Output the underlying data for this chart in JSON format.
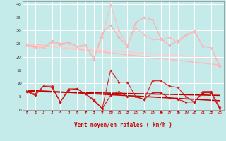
{
  "xlabel": "Vent moyen/en rafales ( km/h )",
  "xlim": [
    -0.5,
    23.5
  ],
  "ylim": [
    0,
    41
  ],
  "yticks": [
    0,
    5,
    10,
    15,
    20,
    25,
    30,
    35,
    40
  ],
  "xticks": [
    0,
    1,
    2,
    3,
    4,
    5,
    6,
    7,
    8,
    9,
    10,
    11,
    12,
    13,
    14,
    15,
    16,
    17,
    18,
    19,
    20,
    21,
    22,
    23
  ],
  "bg_color": "#c5eaea",
  "grid_color": "#ffffff",
  "line_light1": {
    "x": [
      0,
      1,
      2,
      3,
      4,
      5,
      6,
      7,
      8,
      9,
      10,
      11,
      12,
      13,
      14,
      15,
      16,
      17,
      18,
      19,
      20,
      21,
      22,
      23
    ],
    "y": [
      24.5,
      24.0,
      23.5,
      26.0,
      25.0,
      25.5,
      24.0,
      24.5,
      19.0,
      29.0,
      32.0,
      27.5,
      24.0,
      33.0,
      35.0,
      34.0,
      27.0,
      24.5,
      26.0,
      28.5,
      29.5,
      24.0,
      23.5,
      16.5
    ],
    "color": "#ffaaaa",
    "marker": "D",
    "ms": 2.0,
    "lw": 0.8
  },
  "line_light2": {
    "x": [
      0,
      1,
      2,
      3,
      4,
      5,
      6,
      7,
      8,
      9,
      10,
      11,
      12,
      13,
      14,
      15,
      16,
      17,
      18,
      19,
      20,
      21,
      22,
      23
    ],
    "y": [
      24.5,
      23.5,
      23.5,
      25.5,
      24.5,
      25.0,
      24.0,
      24.5,
      19.5,
      27.5,
      40.0,
      30.0,
      24.5,
      31.0,
      28.5,
      26.5,
      26.5,
      27.5,
      25.5,
      28.0,
      30.0,
      24.0,
      23.5,
      17.0
    ],
    "color": "#ffbbbb",
    "marker": "D",
    "ms": 2.0,
    "lw": 0.8
  },
  "trend_light1": {
    "x": [
      0,
      23
    ],
    "y": [
      25.0,
      17.0
    ],
    "color": "#ffbbbb",
    "lw": 1.2
  },
  "trend_light2": {
    "x": [
      0,
      23
    ],
    "y": [
      24.5,
      19.5
    ],
    "color": "#ffcccc",
    "lw": 1.2
  },
  "line_dark1": {
    "x": [
      0,
      1,
      2,
      3,
      4,
      5,
      6,
      7,
      8,
      9,
      10,
      11,
      12,
      13,
      14,
      15,
      16,
      17,
      18,
      19,
      20,
      21,
      22,
      23
    ],
    "y": [
      7.0,
      6.0,
      9.0,
      9.0,
      3.0,
      8.0,
      8.0,
      6.0,
      4.0,
      0.5,
      15.0,
      10.5,
      10.5,
      5.0,
      4.0,
      11.0,
      11.0,
      9.0,
      8.5,
      5.0,
      3.0,
      7.0,
      7.0,
      1.0
    ],
    "color": "#dd2222",
    "marker": "D",
    "ms": 2.0,
    "lw": 0.8
  },
  "line_dark2": {
    "x": [
      0,
      1,
      2,
      3,
      4,
      5,
      6,
      7,
      8,
      9,
      10,
      11,
      12,
      13,
      14,
      15,
      16,
      17,
      18,
      19,
      20,
      21,
      22,
      23
    ],
    "y": [
      7.0,
      5.5,
      9.0,
      8.5,
      3.0,
      7.5,
      8.0,
      6.0,
      3.5,
      0.5,
      5.5,
      7.0,
      5.0,
      5.0,
      4.0,
      6.5,
      6.5,
      4.5,
      4.0,
      3.0,
      3.0,
      6.5,
      6.5,
      0.5
    ],
    "color": "#cc1111",
    "marker": "D",
    "ms": 2.0,
    "lw": 0.8
  },
  "trend_dark1": {
    "x": [
      0,
      23
    ],
    "y": [
      7.5,
      3.5
    ],
    "color": "#cc0000",
    "lw": 1.2
  },
  "trend_dark2": {
    "x": [
      0,
      23
    ],
    "y": [
      7.0,
      5.5
    ],
    "color": "#bb0000",
    "lw": 1.2
  },
  "wind_arrows_x": [
    0,
    1,
    2,
    3,
    4,
    5,
    6,
    7,
    8,
    9,
    10,
    11,
    12,
    13,
    14,
    15,
    16,
    17,
    18,
    19,
    20,
    21,
    22,
    23
  ],
  "wind_arrows_angles": [
    225,
    225,
    225,
    225,
    225,
    225,
    225,
    200,
    225,
    225,
    270,
    225,
    225,
    225,
    270,
    200,
    180,
    225,
    200,
    225,
    225,
    225,
    225,
    225
  ]
}
